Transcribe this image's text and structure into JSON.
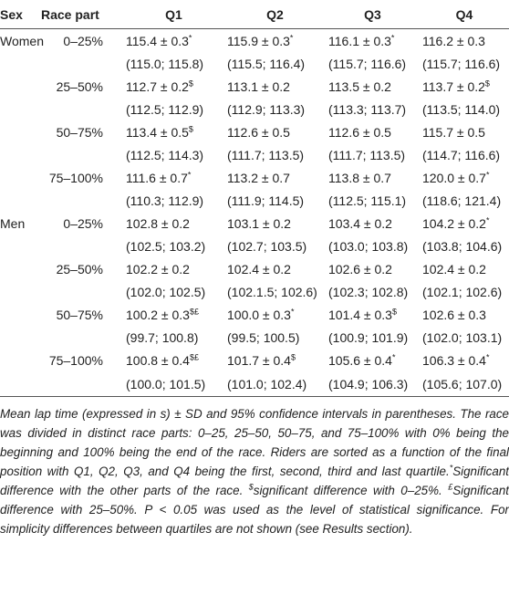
{
  "table": {
    "header": [
      "Sex",
      "Race part",
      "Q1",
      "Q2",
      "Q3",
      "Q4"
    ],
    "rows": [
      {
        "sex": "Women",
        "part": "0–25%",
        "cells": [
          {
            "mean": "115.4 ± 0.3",
            "sup": "*"
          },
          {
            "mean": "115.9 ± 0.3",
            "sup": "*"
          },
          {
            "mean": "116.1 ± 0.3",
            "sup": "*"
          },
          {
            "mean": "116.2 ± 0.3"
          }
        ],
        "ci": [
          "(115.0; 115.8)",
          "(115.5; 116.4)",
          "(115.7; 116.6)",
          "(115.7; 116.6)"
        ]
      },
      {
        "part": "25–50%",
        "cells": [
          {
            "mean": "112.7 ± 0.2",
            "sup": "$"
          },
          {
            "mean": "113.1 ± 0.2"
          },
          {
            "mean": "113.5 ± 0.2"
          },
          {
            "mean": "113.7 ± 0.2",
            "sup": "$"
          }
        ],
        "ci": [
          "(112.5; 112.9)",
          "(112.9; 113.3)",
          "(113.3; 113.7)",
          "(113.5; 114.0)"
        ]
      },
      {
        "part": "50–75%",
        "cells": [
          {
            "mean": "113.4 ± 0.5",
            "sup": "$"
          },
          {
            "mean": "112.6 ± 0.5"
          },
          {
            "mean": "112.6 ± 0.5"
          },
          {
            "mean": "115.7 ± 0.5"
          }
        ],
        "ci": [
          "(112.5; 114.3)",
          "(111.7; 113.5)",
          "(111.7; 113.5)",
          "(114.7; 116.6)"
        ]
      },
      {
        "part": "75–100%",
        "cells": [
          {
            "mean": "111.6 ± 0.7",
            "sup": "*"
          },
          {
            "mean": "113.2 ± 0.7"
          },
          {
            "mean": "113.8 ± 0.7"
          },
          {
            "mean": "120.0 ± 0.7",
            "sup": "*"
          }
        ],
        "ci": [
          "(110.3; 112.9)",
          "(111.9; 114.5)",
          "(112.5; 115.1)",
          "(118.6; 121.4)"
        ]
      },
      {
        "sex": "Men",
        "part": "0–25%",
        "cells": [
          {
            "mean": "102.8 ± 0.2"
          },
          {
            "mean": "103.1 ± 0.2"
          },
          {
            "mean": "103.4 ± 0.2"
          },
          {
            "mean": "104.2 ± 0.2",
            "sup": "*"
          }
        ],
        "ci": [
          "(102.5; 103.2)",
          "(102.7; 103.5)",
          "(103.0; 103.8)",
          "(103.8; 104.6)"
        ]
      },
      {
        "part": "25–50%",
        "cells": [
          {
            "mean": "102.2 ± 0.2"
          },
          {
            "mean": "102.4 ± 0.2"
          },
          {
            "mean": "102.6 ± 0.2"
          },
          {
            "mean": "102.4 ± 0.2"
          }
        ],
        "ci": [
          "(102.0; 102.5)",
          "(102.1.5; 102.6)",
          "(102.3; 102.8)",
          "(102.1; 102.6)"
        ]
      },
      {
        "part": "50–75%",
        "cells": [
          {
            "mean": "100.2 ± 0.3",
            "sup": "$£"
          },
          {
            "mean": "100.0 ± 0.3",
            "sup": "*"
          },
          {
            "mean": "101.4 ± 0.3",
            "sup": "$"
          },
          {
            "mean": "102.6 ± 0.3"
          }
        ],
        "ci": [
          "(99.7; 100.8)",
          "(99.5; 100.5)",
          "(100.9; 101.9)",
          "(102.0; 103.1)"
        ]
      },
      {
        "part": "75–100%",
        "cells": [
          {
            "mean": "100.8 ± 0.4",
            "sup": "$£"
          },
          {
            "mean": "101.7 ± 0.4",
            "sup": "$"
          },
          {
            "mean": "105.6 ± 0.4",
            "sup": "*"
          },
          {
            "mean": "106.3 ± 0.4",
            "sup": "*"
          }
        ],
        "ci": [
          "(100.0; 101.5)",
          "(101.0; 102.4)",
          "(104.9; 106.3)",
          "(105.6; 107.0)"
        ]
      }
    ],
    "note": [
      {
        "text": "Mean lap time (expressed in s) ± SD and 95% confidence intervals in parentheses. The race was divided in distinct race parts: 0–25, 25–50, 50–75, and 75–100% with 0% being the beginning and 100% being the end of the race. Riders are sorted as a function of the final position with Q1, Q2, Q3, and Q4 being the first, second, third and last quartile."
      },
      {
        "sup": "*"
      },
      {
        "text": "Significant difference with the other parts of the race. "
      },
      {
        "sup": "$"
      },
      {
        "text": "significant difference with 0–25%. "
      },
      {
        "sup": "£"
      },
      {
        "text": "Significant difference with 25–50%. P < 0.05 was used as the level of statistical significance. For simplicity differences between quartiles are not shown (see Results section)."
      }
    ]
  }
}
